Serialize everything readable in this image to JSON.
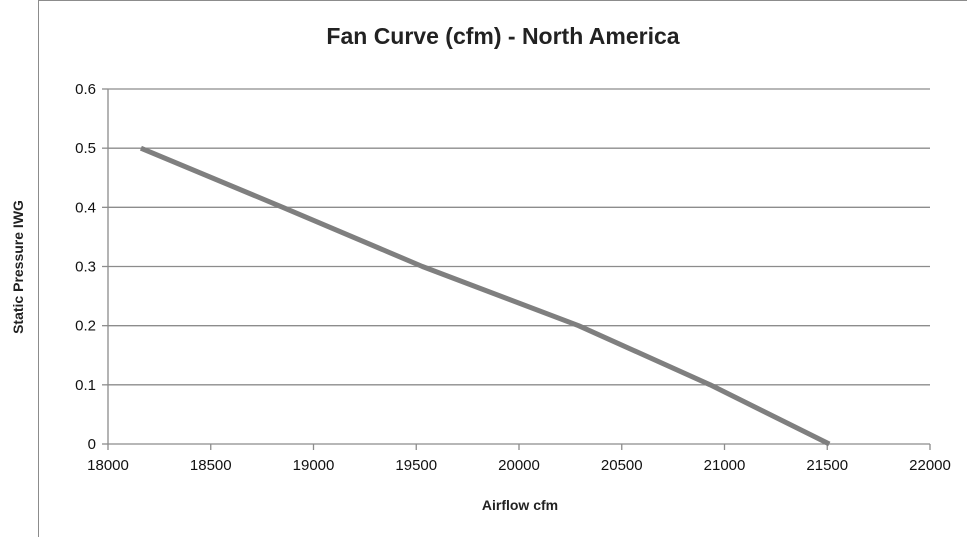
{
  "chart_data": {
    "type": "line",
    "title": "Fan Curve (cfm) - North America",
    "xlabel": "Airflow cfm",
    "ylabel": "Static Pressure IWG",
    "xlim": [
      18000,
      22000
    ],
    "ylim": [
      0,
      0.6
    ],
    "x_ticks": [
      "18000",
      "18500",
      "19000",
      "19500",
      "20000",
      "20500",
      "21000",
      "21500",
      "22000"
    ],
    "y_ticks": [
      "0",
      "0.1",
      "0.2",
      "0.3",
      "0.4",
      "0.5",
      "0.6"
    ],
    "grid": "horizontal",
    "legend": "none",
    "series": [
      {
        "color": "#7f7f7f",
        "points": [
          {
            "x": 18160,
            "y": 0.5
          },
          {
            "x": 18850,
            "y": 0.4
          },
          {
            "x": 19530,
            "y": 0.3
          },
          {
            "x": 20290,
            "y": 0.2
          },
          {
            "x": 20930,
            "y": 0.1
          },
          {
            "x": 21510,
            "y": 0.0
          }
        ]
      }
    ]
  }
}
